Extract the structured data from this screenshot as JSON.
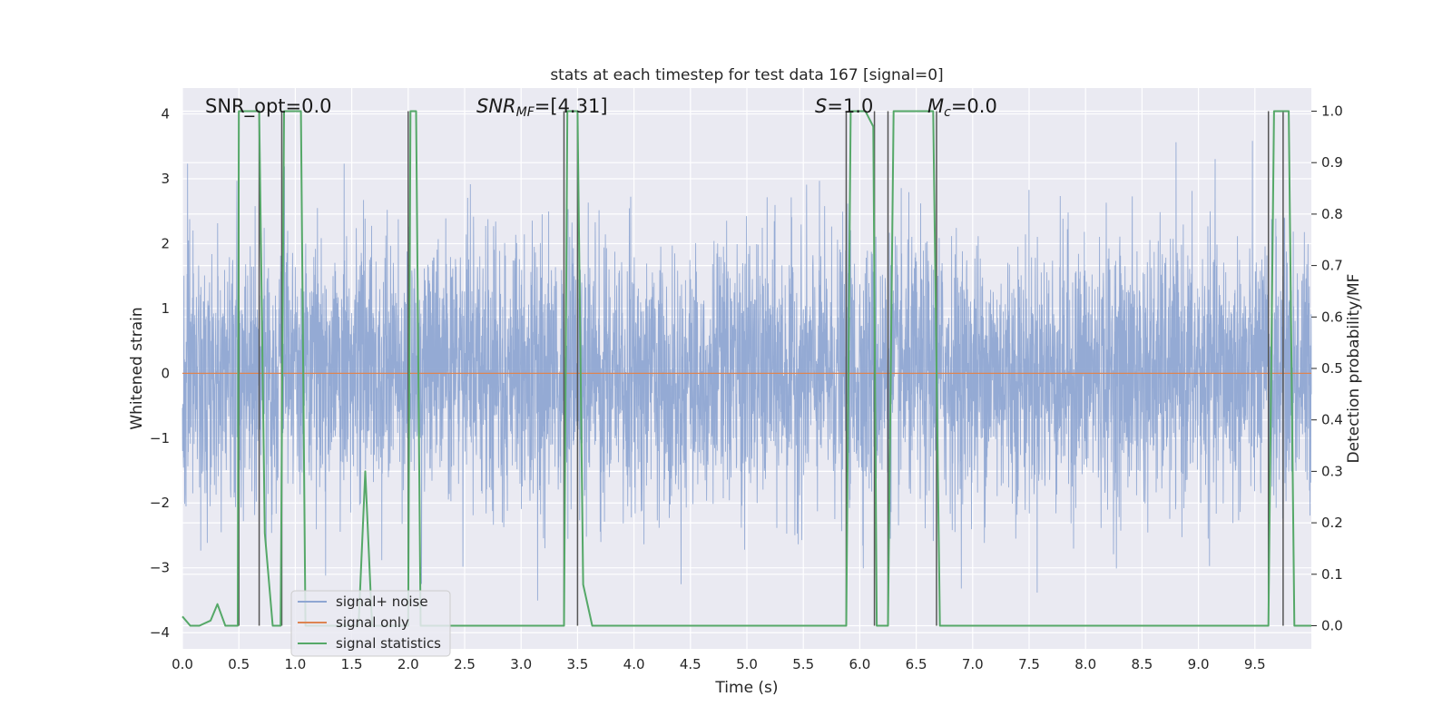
{
  "chart_data": {
    "type": "line",
    "title": "stats at each timestep for test data 167 [signal=0]",
    "xlabel": "Time (s)",
    "ylabel": "Whitened strain",
    "ylabel_right": "Detection probability/MF",
    "xlim": [
      0.0,
      10.0
    ],
    "ylim": [
      -4.25,
      4.4
    ],
    "ylim_right": [
      -0.045,
      1.045
    ],
    "xticks": [
      0.0,
      0.5,
      1.0,
      1.5,
      2.0,
      2.5,
      3.0,
      3.5,
      4.0,
      4.5,
      5.0,
      5.5,
      6.0,
      6.5,
      7.0,
      7.5,
      8.0,
      8.5,
      9.0,
      9.5
    ],
    "xtick_labels": [
      "0.0",
      "0.5",
      "1.0",
      "1.5",
      "2.0",
      "2.5",
      "3.0",
      "3.5",
      "4.0",
      "4.5",
      "5.0",
      "5.5",
      "6.0",
      "6.5",
      "7.0",
      "7.5",
      "8.0",
      "8.5",
      "9.0",
      "9.5"
    ],
    "yticks": [
      -4,
      -3,
      -2,
      -1,
      0,
      1,
      2,
      3,
      4
    ],
    "ytick_labels": [
      "−4",
      "−3",
      "−2",
      "−1",
      "0",
      "1",
      "2",
      "3",
      "4"
    ],
    "yticks_right": [
      0.0,
      0.1,
      0.2,
      0.3,
      0.4,
      0.5,
      0.6,
      0.7,
      0.8,
      0.9,
      1.0
    ],
    "ytick_labels_right": [
      "0.0",
      "0.1",
      "0.2",
      "0.3",
      "0.4",
      "0.5",
      "0.6",
      "0.7",
      "0.8",
      "0.9",
      "1.0"
    ],
    "grid": true,
    "legend_position": "bottom-left",
    "annotations": {
      "snr_opt": "SNR_opt=0.0",
      "snr_mf_italic": "SNR",
      "snr_mf_sub": "MF",
      "snr_mf_rest": "=[4.31]",
      "s_italic": "S",
      "s_rest": "=1.0",
      "mc_italic": "M",
      "mc_sub": "c",
      "mc_rest": "=0.0"
    },
    "series": [
      {
        "name": "signal+ noise",
        "color": "#8fa6d2",
        "kind": "noise",
        "typical_abs_amplitude": 1.0,
        "max_abs_amplitude": 4.0
      },
      {
        "name": "signal only",
        "color": "#dd8452",
        "kind": "line",
        "x": [
          0.0,
          10.0
        ],
        "y": [
          0.0,
          0.0
        ]
      },
      {
        "name": "signal statistics",
        "color": "#55a868",
        "kind": "line",
        "axis": "right",
        "x": [
          0.0,
          0.07,
          0.15,
          0.25,
          0.31,
          0.38,
          0.49,
          0.5,
          0.55,
          0.68,
          0.73,
          0.8,
          0.87,
          0.9,
          0.93,
          1.05,
          1.09,
          1.15,
          1.56,
          1.62,
          1.68,
          1.75,
          2.0,
          2.02,
          2.07,
          2.11,
          2.15,
          3.38,
          3.41,
          3.45,
          3.5,
          3.55,
          3.63,
          5.88,
          5.92,
          6.05,
          6.12,
          6.15,
          6.2,
          6.25,
          6.3,
          6.4,
          6.65,
          6.71,
          6.75,
          9.62,
          9.67,
          9.72,
          9.8,
          9.85,
          9.9,
          9.95,
          10.0
        ],
        "y": [
          0.018,
          0.0,
          0.0,
          0.01,
          0.042,
          0.0,
          0.0,
          1.0,
          1.0,
          1.0,
          0.18,
          0.0,
          0.0,
          1.0,
          1.0,
          1.0,
          0.0,
          0.0,
          0.0,
          0.3,
          0.0,
          0.0,
          0.0,
          1.0,
          1.0,
          0.0,
          0.0,
          0.0,
          1.0,
          1.0,
          1.0,
          0.08,
          0.0,
          0.0,
          1.0,
          1.0,
          0.97,
          0.0,
          0.0,
          0.0,
          1.0,
          1.0,
          1.0,
          0.0,
          0.0,
          0.0,
          1.0,
          1.0,
          1.0,
          0.0,
          0.0,
          0.0,
          0.0
        ]
      }
    ],
    "vlines": {
      "color": "#555555",
      "x": [
        0.5,
        0.68,
        0.88,
        2.0,
        3.38,
        3.5,
        5.88,
        6.13,
        6.25,
        6.68,
        9.62,
        9.75
      ],
      "y_top_right": [
        1.0,
        1.0,
        1.0,
        1.0,
        1.0,
        1.0,
        1.0,
        1.0,
        1.0,
        1.0,
        1.0,
        1.0
      ]
    }
  }
}
